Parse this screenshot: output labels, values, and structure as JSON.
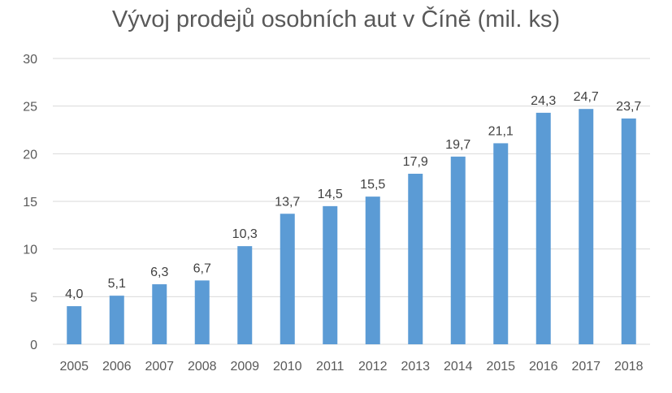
{
  "chart_data": {
    "type": "bar",
    "title": "Vývoj prodejů osobních aut v Číně (mil. ks)",
    "xlabel": "",
    "ylabel": "",
    "categories": [
      "2005",
      "2006",
      "2007",
      "2008",
      "2009",
      "2010",
      "2011",
      "2012",
      "2013",
      "2014",
      "2015",
      "2016",
      "2017",
      "2018"
    ],
    "values": [
      4.0,
      5.1,
      6.3,
      6.7,
      10.3,
      13.7,
      14.5,
      15.5,
      17.9,
      19.7,
      21.1,
      24.3,
      24.7,
      23.7
    ],
    "data_labels": [
      "4,0",
      "5,1",
      "6,3",
      "6,7",
      "10,3",
      "13,7",
      "14,5",
      "15,5",
      "17,9",
      "19,7",
      "21,1",
      "24,3",
      "24,7",
      "23,7"
    ],
    "ylim": [
      0,
      30
    ],
    "yticks": [
      "0",
      "5",
      "10",
      "15",
      "20",
      "25",
      "30"
    ],
    "grid": true,
    "legend": "none",
    "colors": {
      "bar": "#5B9BD5",
      "grid": "#D9D9D9",
      "text": "#595959"
    }
  }
}
